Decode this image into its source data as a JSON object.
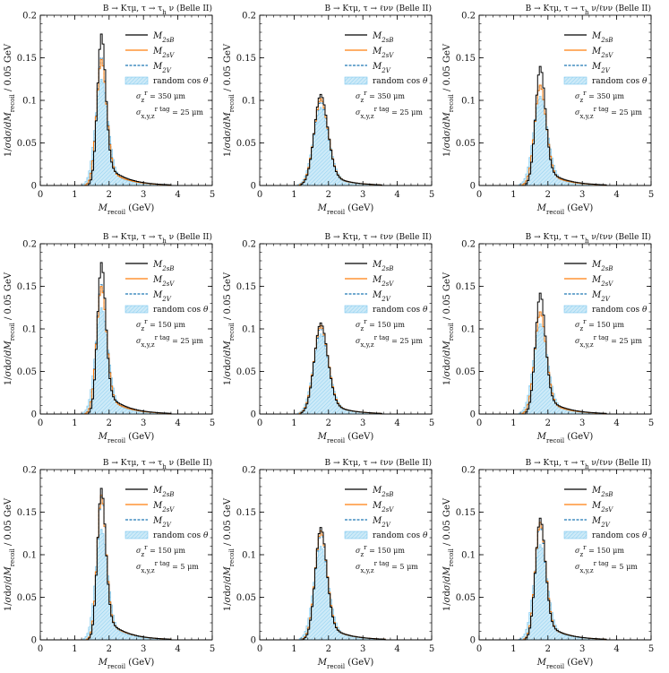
{
  "chart_data": [
    {
      "type": "histogram",
      "title": "B → Kτμ, τ → τ_h ν (Belle II)",
      "xlabel": "M_recoil (GeV)",
      "ylabel": "1/σdσ/dM_recoil / 0.05 GeV",
      "xlim": [
        0,
        5
      ],
      "ylim": [
        0,
        0.2
      ],
      "xticks": [
        0,
        1,
        2,
        3,
        4,
        5
      ],
      "yticks": [
        0,
        0.05,
        0.1,
        0.15,
        0.2
      ],
      "ytick_labels": [
        "0",
        "0.05",
        "0.1",
        "0.15",
        "0.2"
      ],
      "legend": {
        "s1": "M_2sB",
        "s2": "M_2sV",
        "s3": "M_2V",
        "s4": "random cos θ"
      },
      "annotation": [
        "σ_z^{r_0} = 350 μm",
        "σ_{x,y,z}^{r_{tag}} = 25 μm"
      ],
      "peaks": {
        "M_2sB": 0.178,
        "M_2sV": 0.148,
        "M_2V": 0.15,
        "random cos θ": 0.125
      },
      "peak_x": 1.78,
      "widths": {
        "M_2sB": 0.16,
        "M_2sV": 0.19,
        "M_2V": 0.19,
        "random cos θ": 0.24
      }
    },
    {
      "type": "histogram",
      "title": "B → Kτμ, τ → ℓνν (Belle II)",
      "xlabel": "M_recoil (GeV)",
      "ylabel": "1/σdσ/dM_recoil / 0.05 GeV",
      "xlim": [
        0,
        5
      ],
      "ylim": [
        0,
        0.2
      ],
      "xticks": [
        0,
        1,
        2,
        3,
        4,
        5
      ],
      "yticks": [
        0,
        0.05,
        0.1,
        0.15,
        0.2
      ],
      "ytick_labels": [
        "0",
        "0.05",
        "0.1",
        "0.15",
        "0.2"
      ],
      "legend": {
        "s1": "M_2sB",
        "s2": "M_2sV",
        "s3": "M_2V",
        "s4": "random cos θ"
      },
      "annotation": [
        "σ_z^{r_0} = 350 μm",
        "σ_{x,y,z}^{r_{tag}} = 25 μm"
      ],
      "peaks": {
        "M_2sB": 0.107,
        "M_2sV": 0.102,
        "M_2V": 0.1,
        "random cos θ": 0.092
      },
      "peak_x": 1.78,
      "widths": {
        "M_2sB": 0.26,
        "M_2sV": 0.27,
        "M_2V": 0.27,
        "random cos θ": 0.3
      }
    },
    {
      "type": "histogram",
      "title": "B → Kτμ, τ → τ_h ν/ℓνν (Belle II)",
      "xlabel": "M_recoil (GeV)",
      "ylabel": "1/σdσ/dM_recoil / 0.05 GeV",
      "xlim": [
        0,
        5
      ],
      "ylim": [
        0,
        0.2
      ],
      "xticks": [
        0,
        1,
        2,
        3,
        4,
        5
      ],
      "yticks": [
        0,
        0.05,
        0.1,
        0.15,
        0.2
      ],
      "ytick_labels": [
        "0",
        "0.05",
        "0.1",
        "0.15",
        "0.2"
      ],
      "legend": {
        "s1": "M_2sB",
        "s2": "M_2sV",
        "s3": "M_2V",
        "s4": "random cos θ"
      },
      "annotation": [
        "σ_z^{r_0} = 350 μm",
        "σ_{x,y,z}^{r_{tag}} = 25 μm"
      ],
      "peaks": {
        "M_2sB": 0.14,
        "M_2sV": 0.118,
        "M_2V": 0.118,
        "random cos θ": 0.105
      },
      "peak_x": 1.78,
      "widths": {
        "M_2sB": 0.19,
        "M_2sV": 0.22,
        "M_2V": 0.22,
        "random cos θ": 0.27
      }
    },
    {
      "type": "histogram",
      "title": "B → Kτμ, τ → τ_h ν (Belle II)",
      "xlabel": "M_recoil (GeV)",
      "ylabel": "1/σdσ/dM_recoil / 0.05 GeV",
      "xlim": [
        0,
        5
      ],
      "ylim": [
        0,
        0.2
      ],
      "xticks": [
        0,
        1,
        2,
        3,
        4,
        5
      ],
      "yticks": [
        0,
        0.05,
        0.1,
        0.15,
        0.2
      ],
      "ytick_labels": [
        "0",
        "0.05",
        "0.1",
        "0.15",
        "0.2"
      ],
      "legend": {
        "s1": "M_2sB",
        "s2": "M_2sV",
        "s3": "M_2V",
        "s4": "random cos θ"
      },
      "annotation": [
        "σ_z^{r_0} = 150 μm",
        "σ_{x,y,z}^{r_{tag}} = 25 μm"
      ],
      "peaks": {
        "M_2sB": 0.178,
        "M_2sV": 0.15,
        "M_2V": 0.152,
        "random cos θ": 0.125
      },
      "peak_x": 1.78,
      "widths": {
        "M_2sB": 0.16,
        "M_2sV": 0.19,
        "M_2V": 0.19,
        "random cos θ": 0.24
      }
    },
    {
      "type": "histogram",
      "title": "B → Kτμ, τ → ℓνν (Belle II)",
      "xlabel": "M_recoil (GeV)",
      "ylabel": "1/σdσ/dM_recoil / 0.05 GeV",
      "xlim": [
        0,
        5
      ],
      "ylim": [
        0,
        0.2
      ],
      "xticks": [
        0,
        1,
        2,
        3,
        4,
        5
      ],
      "yticks": [
        0,
        0.05,
        0.1,
        0.15,
        0.2
      ],
      "ytick_labels": [
        "0",
        "0.05",
        "0.1",
        "0.15",
        "0.2"
      ],
      "legend": {
        "s1": "M_2sB",
        "s2": "M_2sV",
        "s3": "M_2V",
        "s4": "random cos θ"
      },
      "annotation": [
        "σ_z^{r_0} = 150 μm",
        "σ_{x,y,z}^{r_{tag}} = 25 μm"
      ],
      "peaks": {
        "M_2sB": 0.107,
        "M_2sV": 0.104,
        "M_2V": 0.102,
        "random cos θ": 0.094
      },
      "peak_x": 1.78,
      "widths": {
        "M_2sB": 0.26,
        "M_2sV": 0.27,
        "M_2V": 0.27,
        "random cos θ": 0.3
      }
    },
    {
      "type": "histogram",
      "title": "B → Kτμ, τ → τ_h ν/ℓνν (Belle II)",
      "xlabel": "M_recoil (GeV)",
      "ylabel": "1/σdσ/dM_recoil / 0.05 GeV",
      "xlim": [
        0,
        5
      ],
      "ylim": [
        0,
        0.2
      ],
      "xticks": [
        0,
        1,
        2,
        3,
        4,
        5
      ],
      "yticks": [
        0,
        0.05,
        0.1,
        0.15,
        0.2
      ],
      "ytick_labels": [
        "0",
        "0.05",
        "0.1",
        "0.15",
        "0.2"
      ],
      "legend": {
        "s1": "M_2sB",
        "s2": "M_2sV",
        "s3": "M_2V",
        "s4": "random cos θ"
      },
      "annotation": [
        "σ_z^{r_0} = 150 μm",
        "σ_{x,y,z}^{r_{tag}} = 25 μm"
      ],
      "peaks": {
        "M_2sB": 0.142,
        "M_2sV": 0.12,
        "M_2V": 0.12,
        "random cos θ": 0.106
      },
      "peak_x": 1.78,
      "widths": {
        "M_2sB": 0.19,
        "M_2sV": 0.22,
        "M_2V": 0.22,
        "random cos θ": 0.27
      }
    },
    {
      "type": "histogram",
      "title": "B → Kτμ, τ → τ_h ν (Belle II)",
      "xlabel": "M_recoil (GeV)",
      "ylabel": "1/σdσ/dM_recoil / 0.05 GeV",
      "xlim": [
        0,
        5
      ],
      "ylim": [
        0,
        0.2
      ],
      "xticks": [
        0,
        1,
        2,
        3,
        4,
        5
      ],
      "yticks": [
        0,
        0.05,
        0.1,
        0.15,
        0.2
      ],
      "ytick_labels": [
        "0",
        "0.05",
        "0.1",
        "0.15",
        "0.2"
      ],
      "legend": {
        "s1": "M_2sB",
        "s2": "M_2sV",
        "s3": "M_2V",
        "s4": "random cos θ"
      },
      "annotation": [
        "σ_z^{r_0} = 150 μm",
        "σ_{x,y,z}^{r_{tag}} = 5 μm"
      ],
      "peaks": {
        "M_2sB": 0.178,
        "M_2sV": 0.17,
        "M_2V": 0.168,
        "random cos θ": 0.13
      },
      "peak_x": 1.78,
      "widths": {
        "M_2sB": 0.16,
        "M_2sV": 0.17,
        "M_2V": 0.17,
        "random cos θ": 0.23
      }
    },
    {
      "type": "histogram",
      "title": "B → Kτμ, τ → ℓνν (Belle II)",
      "xlabel": "M_recoil (GeV)",
      "ylabel": "1/σdσ/dM_recoil / 0.05 GeV",
      "xlim": [
        0,
        5
      ],
      "ylim": [
        0,
        0.2
      ],
      "xticks": [
        0,
        1,
        2,
        3,
        4,
        5
      ],
      "yticks": [
        0,
        0.05,
        0.1,
        0.15,
        0.2
      ],
      "ytick_labels": [
        "0",
        "0.05",
        "0.1",
        "0.15",
        "0.2"
      ],
      "legend": {
        "s1": "M_2sB",
        "s2": "M_2sV",
        "s3": "M_2V",
        "s4": "random cos θ"
      },
      "annotation": [
        "σ_z^{r_0} = 150 μm",
        "σ_{x,y,z}^{r_{tag}} = 5 μm"
      ],
      "peaks": {
        "M_2sB": 0.132,
        "M_2sV": 0.128,
        "M_2V": 0.126,
        "random cos θ": 0.11
      },
      "peak_x": 1.78,
      "widths": {
        "M_2sB": 0.22,
        "M_2sV": 0.23,
        "M_2V": 0.23,
        "random cos θ": 0.28
      }
    },
    {
      "type": "histogram",
      "title": "B → Kτμ, τ → τ_h ν/ℓνν (Belle II)",
      "xlabel": "M_recoil (GeV)",
      "ylabel": "1/σdσ/dM_recoil / 0.05 GeV",
      "xlim": [
        0,
        5
      ],
      "ylim": [
        0,
        0.2
      ],
      "xticks": [
        0,
        1,
        2,
        3,
        4,
        5
      ],
      "yticks": [
        0,
        0.05,
        0.1,
        0.15,
        0.2
      ],
      "ytick_labels": [
        "0",
        "0.05",
        "0.1",
        "0.15",
        "0.2"
      ],
      "legend": {
        "s1": "M_2sB",
        "s2": "M_2sV",
        "s3": "M_2V",
        "s4": "random cos θ"
      },
      "annotation": [
        "σ_z^{r_0} = 150 μm",
        "σ_{x,y,z}^{r_{tag}} = 5 μm"
      ],
      "peaks": {
        "M_2sB": 0.143,
        "M_2sV": 0.138,
        "M_2V": 0.136,
        "random cos θ": 0.112
      },
      "peak_x": 1.78,
      "widths": {
        "M_2sB": 0.19,
        "M_2sV": 0.2,
        "M_2V": 0.2,
        "random cos θ": 0.26
      }
    }
  ],
  "colors": {
    "M_2sB": "#000000",
    "M_2sV": "#ff7f0e",
    "M_2V": "#1f77b4",
    "random cos θ": "#bfe5f7",
    "random_hatch": "#7fc8ee"
  }
}
